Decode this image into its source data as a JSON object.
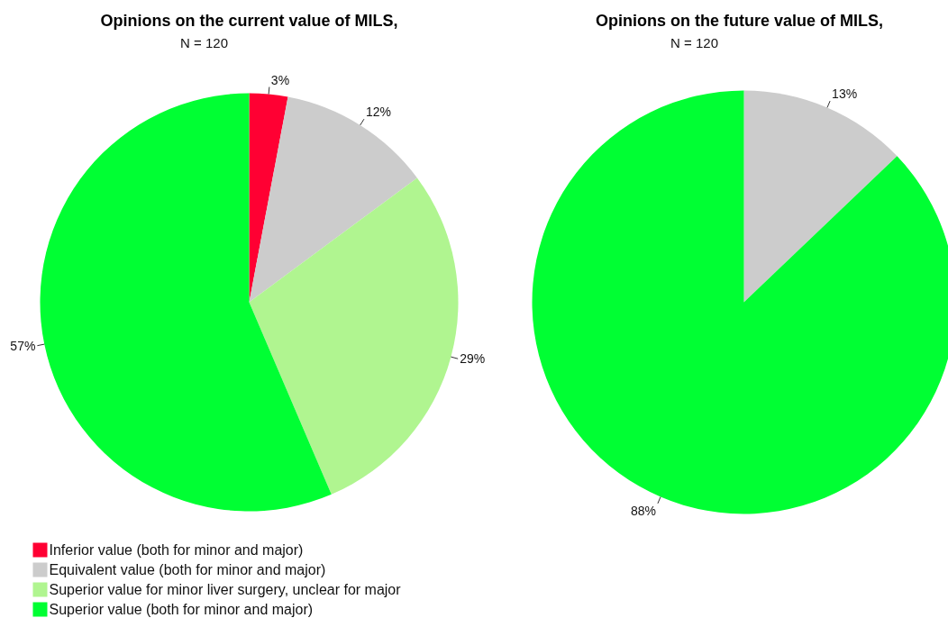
{
  "chart_data": [
    {
      "type": "pie",
      "title": "Opinions on the current value of MILS,",
      "subtitle": "N = 120",
      "categories": [
        "Inferior value (both for minor and major)",
        "Equivalent value (both for minor and major)",
        "Superior value for minor liver surgery, unclear for major",
        "Superior value (both for minor and major)"
      ],
      "values": [
        3,
        12,
        29,
        57
      ],
      "colors": [
        "#ff0033",
        "#cccccc",
        "#b0f590",
        "#00ff33"
      ],
      "value_labels": [
        "3%",
        "12%",
        "29%",
        "57%"
      ],
      "legend": "bottom left"
    },
    {
      "type": "pie",
      "title": "Opinions on the future value of MILS,",
      "subtitle": "N = 120",
      "categories": [
        null,
        null
      ],
      "values": [
        13,
        88
      ],
      "colors": [
        "#cccccc",
        "#00ff33"
      ],
      "value_labels": [
        "13%",
        "88%"
      ],
      "legend": false
    }
  ]
}
